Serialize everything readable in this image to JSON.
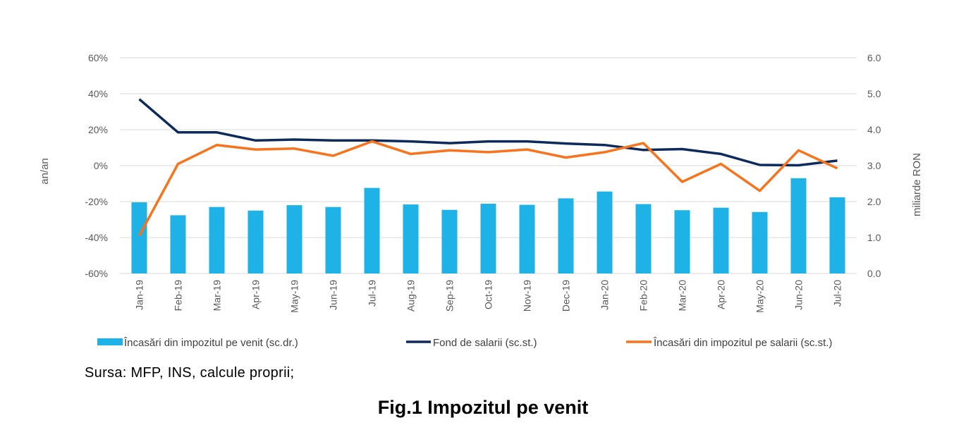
{
  "chart_data": {
    "type": "bar+line",
    "categories": [
      "Jan-19",
      "Feb-19",
      "Mar-19",
      "Apr-19",
      "May-19",
      "Jun-19",
      "Jul-19",
      "Aug-19",
      "Sep-19",
      "Oct-19",
      "Nov-19",
      "Dec-19",
      "Jan-20",
      "Feb-20",
      "Mar-20",
      "Apr-20",
      "May-20",
      "Jun-20",
      "Jul-20"
    ],
    "left_axis": {
      "label": "an/an",
      "ylim": [
        -60,
        60
      ],
      "ticks": [
        "60%",
        "40%",
        "20%",
        "0%",
        "-20%",
        "-40%",
        "-60%"
      ]
    },
    "right_axis": {
      "label": "miliarde RON",
      "ylim": [
        0,
        6
      ],
      "ticks": [
        "6.0",
        "5.0",
        "4.0",
        "3.0",
        "2.0",
        "1.0",
        "0.0"
      ]
    },
    "series": [
      {
        "name": "Încasări din impozitul pe venit (sc.dr.)",
        "kind": "bar",
        "axis": "right",
        "color": "#1fb2e6",
        "values": [
          1.98,
          1.62,
          1.85,
          1.75,
          1.9,
          1.85,
          2.38,
          1.92,
          1.77,
          1.94,
          1.91,
          2.09,
          2.28,
          1.93,
          1.76,
          1.83,
          1.71,
          2.65,
          2.12
        ]
      },
      {
        "name": "Fond de salarii (sc.st.)",
        "kind": "line",
        "axis": "left",
        "color": "#0d2a5c",
        "values": [
          37,
          18.5,
          18.5,
          14,
          14.5,
          14,
          14,
          13.5,
          12.5,
          13.5,
          13.5,
          12.3,
          11.5,
          8.7,
          9.2,
          6.5,
          0.4,
          0.2,
          2.8
        ]
      },
      {
        "name": "Încasări din impozitul pe salarii (sc.st.)",
        "kind": "line",
        "axis": "left",
        "color": "#f7731c",
        "values": [
          -39,
          1,
          11.5,
          9,
          9.5,
          5.5,
          13.5,
          6.5,
          8.5,
          7.5,
          9,
          4.5,
          7.5,
          12.5,
          -9,
          1,
          -14,
          8.5,
          -1.5
        ]
      }
    ]
  },
  "source": "Sursa: MFP, INS, calcule proprii;",
  "figure_title": "Fig.1 Impozitul pe venit"
}
